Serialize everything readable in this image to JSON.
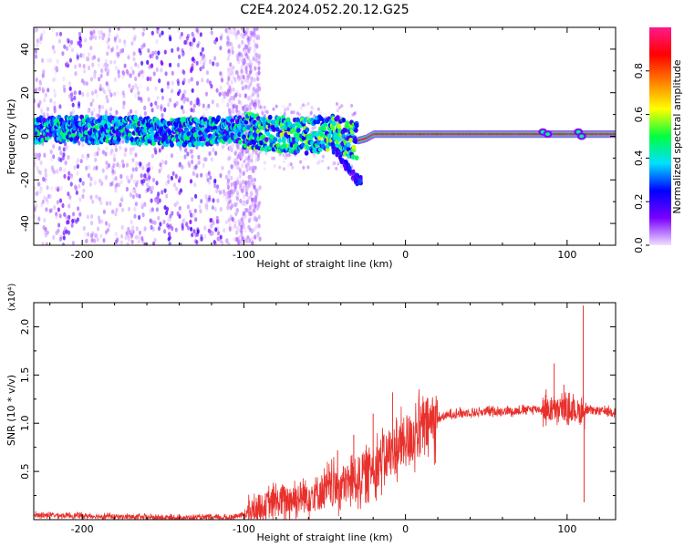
{
  "figure": {
    "title": "C2E4.2024.052.20.12.G25"
  },
  "chart_data": [
    {
      "type": "heatmap",
      "xlabel": "Height of straight line (km)",
      "ylabel": "Frequency (Hz)",
      "xlim": [
        -230,
        130
      ],
      "ylim": [
        -50,
        50
      ],
      "x_ticks": [
        -200,
        -100,
        0,
        100
      ],
      "y_ticks": [
        -40,
        -20,
        0,
        20,
        40
      ],
      "colorbar": {
        "label": "Normalized spectral amplitude",
        "range": [
          0.0,
          1.0
        ],
        "ticks": [
          0.0,
          0.2,
          0.4,
          0.6,
          0.8
        ],
        "colors": [
          "#f0e0ff",
          "#7a00ff",
          "#0000ff",
          "#00e0ff",
          "#00ff40",
          "#ffff00",
          "#ff7f00",
          "#ff0000",
          "#ff1a8c"
        ]
      },
      "band_center_hz": [
        [
          -230,
          3
        ],
        [
          -200,
          3
        ],
        [
          -170,
          3
        ],
        [
          -150,
          2
        ],
        [
          -130,
          2
        ],
        [
          -110,
          3
        ],
        [
          -100,
          3
        ],
        [
          -80,
          1
        ],
        [
          -60,
          0
        ],
        [
          -45,
          2
        ],
        [
          -40,
          0
        ],
        [
          -30,
          -2
        ],
        [
          -25,
          -1
        ],
        [
          -20,
          1
        ],
        [
          -10,
          1
        ],
        [
          0,
          1
        ],
        [
          20,
          1
        ],
        [
          50,
          1
        ],
        [
          80,
          1
        ],
        [
          100,
          1
        ],
        [
          130,
          1
        ]
      ],
      "branch_hz": [
        [
          -45,
          -5
        ],
        [
          -40,
          -10
        ],
        [
          -35,
          -15
        ],
        [
          -30,
          -20
        ]
      ]
    },
    {
      "type": "line",
      "xlabel": "Height of straight line (km)",
      "ylabel": "SNR (10 * v/v)",
      "y_scale_label": "(x10⁴)",
      "xlim": [
        -230,
        130
      ],
      "ylim": [
        0,
        2.25
      ],
      "x_ticks": [
        -200,
        -100,
        0,
        100
      ],
      "y_ticks": [
        0.5,
        1.0,
        1.5,
        2.0
      ],
      "series": [
        {
          "color": "#e8302c",
          "points": [
            [
              -230,
              0.05
            ],
            [
              -200,
              0.04
            ],
            [
              -150,
              0.02
            ],
            [
              -110,
              0.02
            ],
            [
              -100,
              0.05
            ],
            [
              -90,
              0.12
            ],
            [
              -80,
              0.18
            ],
            [
              -70,
              0.22
            ],
            [
              -60,
              0.25
            ],
            [
              -50,
              0.3
            ],
            [
              -40,
              0.35
            ],
            [
              -30,
              0.42
            ],
            [
              -20,
              0.55
            ],
            [
              -10,
              0.68
            ],
            [
              0,
              0.8
            ],
            [
              10,
              0.95
            ],
            [
              20,
              1.05
            ],
            [
              30,
              1.1
            ],
            [
              50,
              1.12
            ],
            [
              70,
              1.13
            ],
            [
              80,
              1.15
            ],
            [
              90,
              1.13
            ],
            [
              100,
              1.15
            ],
            [
              108,
              1.12
            ],
            [
              115,
              1.13
            ],
            [
              130,
              1.12
            ]
          ],
          "spikes": [
            [
              -42,
              0.72
            ],
            [
              -32,
              0.88
            ],
            [
              -20,
              1.1
            ],
            [
              -8,
              1.32
            ],
            [
              -3,
              0.95
            ],
            [
              87,
              1.35
            ],
            [
              92,
              1.62
            ],
            [
              98,
              1.4
            ],
            [
              110,
              2.22
            ],
            [
              110.5,
              0.18
            ]
          ]
        }
      ]
    }
  ]
}
